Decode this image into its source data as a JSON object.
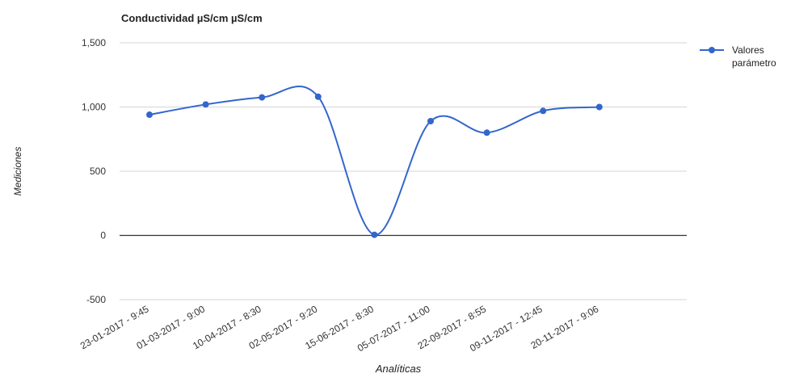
{
  "chart_data": {
    "type": "line",
    "title": "Conductividad µS/cm µS/cm",
    "xlabel": "Analíticas",
    "ylabel": "Mediciones",
    "ylim": [
      -500,
      1500
    ],
    "yticks": [
      1500,
      1000,
      500,
      0,
      -500
    ],
    "ytick_labels": [
      "1,500",
      "1,000",
      "500",
      "0",
      "-500"
    ],
    "categories": [
      "23-01-2017 - 9:45",
      "01-03-2017 - 9:00",
      "10-04-2017 - 8:30",
      "02-05-2017 - 9:20",
      "15-06-2017 - 8:30",
      "05-07-2017 - 11:00",
      "22-09-2017 - 8:55",
      "09-11-2017 - 12:45",
      "20-11-2017 - 9:06"
    ],
    "series": [
      {
        "name": "Valores parámetro",
        "values": [
          940,
          1020,
          1075,
          1080,
          5,
          890,
          800,
          970,
          1000
        ],
        "color": "#3366cc"
      }
    ],
    "legend_position": "right",
    "grid": true,
    "smooth": true
  }
}
